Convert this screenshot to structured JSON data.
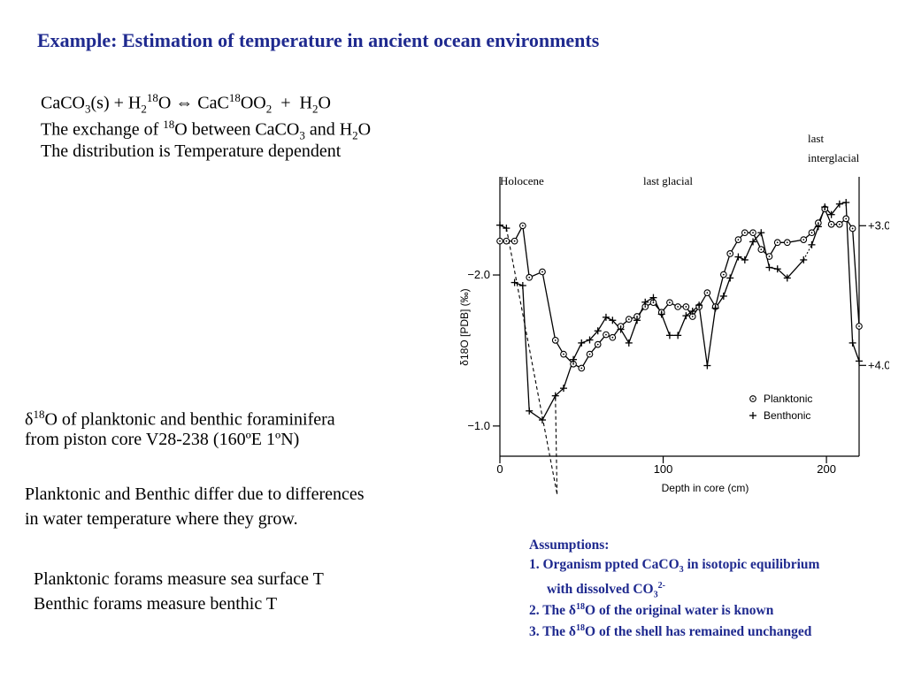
{
  "title": "Example: Estimation of temperature in ancient ocean environments",
  "eq": {
    "r1": "CaCO",
    "r1_sub": "3",
    "r2": "(s) + H",
    "r2_sub": "2",
    "r2_sup": "18",
    "r3": "O",
    "arrow": "⇔",
    "p1": " CaC",
    "p1_sup": "18",
    "p2": "OO",
    "p2_sub": "2",
    "p3": "  +  H",
    "p3_sub": "2",
    "p4": "O"
  },
  "exchange": {
    "a": "The exchange of ",
    "a_sup": "18",
    "b": "O between CaCO",
    "b_sub": "3",
    "c": " and H",
    "c_sub": "2",
    "d": "O"
  },
  "distribution": "The distribution is Temperature dependent",
  "core": {
    "a": "δ",
    "a_sup": "18",
    "b": "O of planktonic and benthic foraminifera",
    "line2": "from piston core V28-238 (160ºE 1ºN)"
  },
  "differ": {
    "line1": "Planktonic and Benthic differ due to differences",
    "line2": "in water temperature where they grow."
  },
  "measure": {
    "line1": "Planktonic forams measure sea surface T",
    "line2": "Benthic forams measure benthic T"
  },
  "assumptions": {
    "heading": "Assumptions:",
    "i1a": "1. Organism ppted CaCO",
    "i1_sub": "3",
    "i1b": " in isotopic equilibrium",
    "i1c": "with dissolved CO",
    "i1c_sub": "3",
    "i1c_sup": "2-",
    "i2a": "2. The δ",
    "i2_sup": "18",
    "i2b": "O of the original water is known",
    "i3a": "3. The δ",
    "i3_sup": "18",
    "i3b": "O of the shell has remained unchanged"
  },
  "chart_data": {
    "type": "line",
    "xlabel": "Depth in core (cm)",
    "ylabel": "δ18O [PDB] (‰)",
    "xlim": [
      0,
      220
    ],
    "x_ticks": [
      0,
      100,
      200
    ],
    "left_axis": {
      "ticks": [
        -2.0,
        -1.0
      ],
      "tick_labels": [
        "−2.0",
        "−1.0"
      ],
      "range": [
        -2.65,
        -0.8
      ]
    },
    "right_axis": {
      "ticks": [
        3.0,
        4.0
      ],
      "tick_labels": [
        "+3.0",
        "+4.0"
      ],
      "range": [
        2.65,
        4.65
      ]
    },
    "annotations": [
      "Holocene",
      "last glacial",
      "last",
      "interglacial"
    ],
    "legend": {
      "position": "bottom-right",
      "entries": [
        "Planktonic",
        "Benthonic"
      ]
    },
    "series": [
      {
        "name": "Planktonic",
        "marker": "circle-dot",
        "axis": "right",
        "x": [
          0,
          4,
          9,
          14,
          18,
          26,
          34,
          39,
          45,
          50,
          55,
          60,
          65,
          69,
          74,
          79,
          84,
          89,
          94,
          99,
          104,
          109,
          114,
          118,
          122,
          127,
          132,
          137,
          141,
          146,
          150,
          155,
          160,
          165,
          170,
          176,
          186,
          191,
          195,
          199,
          203,
          208,
          212,
          216,
          220
        ],
        "y": [
          3.11,
          3.11,
          3.11,
          3.0,
          3.37,
          3.33,
          3.82,
          3.92,
          3.99,
          4.02,
          3.92,
          3.85,
          3.78,
          3.8,
          3.72,
          3.67,
          3.65,
          3.58,
          3.55,
          3.62,
          3.55,
          3.58,
          3.58,
          3.65,
          3.58,
          3.48,
          3.58,
          3.35,
          3.2,
          3.1,
          3.05,
          3.05,
          3.17,
          3.22,
          3.12,
          3.12,
          3.1,
          3.05,
          2.98,
          2.88,
          2.99,
          2.99,
          2.95,
          3.02,
          3.72
        ]
      },
      {
        "name": "Benthonic",
        "marker": "plus",
        "axis": "left",
        "x": [
          0,
          4,
          9,
          14,
          18,
          26,
          34,
          39,
          45,
          50,
          55,
          60,
          65,
          69,
          74,
          79,
          84,
          89,
          94,
          99,
          104,
          109,
          114,
          118,
          122,
          127,
          132,
          137,
          141,
          146,
          150,
          155,
          160,
          165,
          170,
          176,
          186,
          191,
          195,
          199,
          203,
          208,
          212,
          216,
          220
        ],
        "y": [
          -2.33,
          -2.31,
          -1.95,
          -1.93,
          -1.1,
          -1.04,
          -1.2,
          -1.25,
          -1.44,
          -1.55,
          -1.57,
          -1.63,
          -1.72,
          -1.7,
          -1.64,
          -1.55,
          -1.7,
          -1.82,
          -1.85,
          -1.74,
          -1.6,
          -1.6,
          -1.73,
          -1.76,
          -1.8,
          -1.4,
          -1.78,
          -1.86,
          -1.98,
          -2.12,
          -2.1,
          -2.22,
          -2.28,
          -2.05,
          -2.04,
          -1.98,
          -2.1,
          -2.2,
          -2.32,
          -2.45,
          -2.4,
          -2.47,
          -2.48,
          -1.55,
          -1.43
        ]
      }
    ]
  }
}
